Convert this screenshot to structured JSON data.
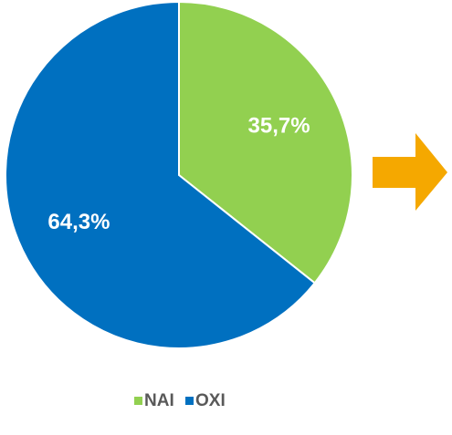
{
  "chart_data": {
    "type": "pie",
    "categories": [
      "NAI",
      "OXI"
    ],
    "values": [
      35.7,
      64.3
    ],
    "value_labels": [
      "35,7%",
      "64,3%"
    ],
    "colors": [
      "#92d050",
      "#0070c0"
    ]
  }
}
